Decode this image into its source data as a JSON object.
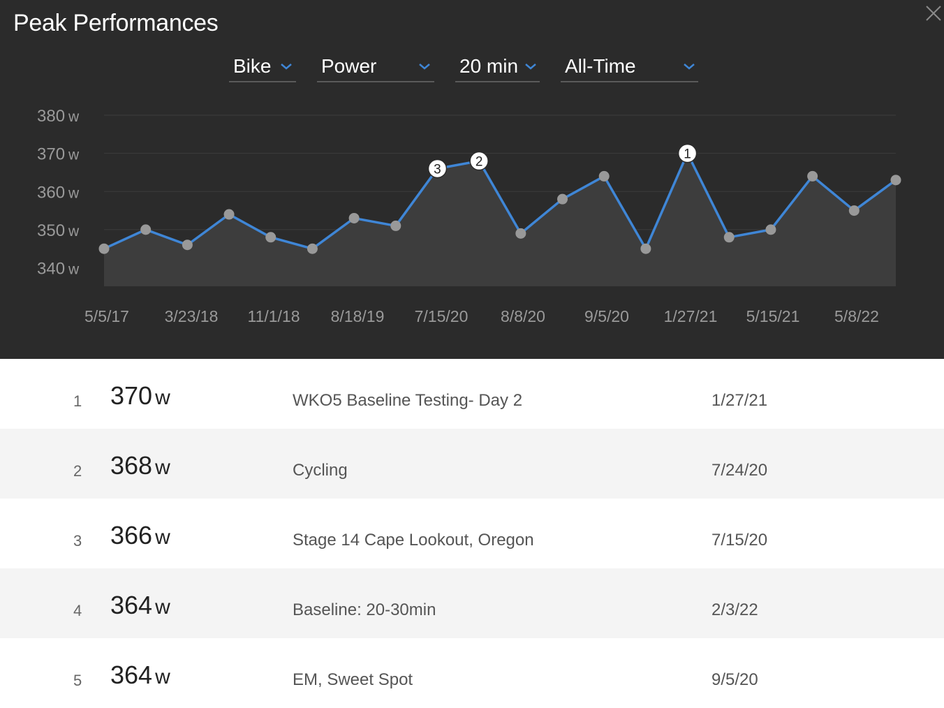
{
  "title": "Peak Performances",
  "colors": {
    "accent": "#3f86d6",
    "panel": "#2b2b2b",
    "point": "#999999",
    "row_alt": "#f4f4f4"
  },
  "filters": [
    {
      "label": "Bike",
      "icon": "chevron-down-icon"
    },
    {
      "label": "Power",
      "icon": "chevron-down-icon"
    },
    {
      "label": "20 min",
      "icon": "chevron-down-icon"
    },
    {
      "label": "All-Time",
      "icon": "chevron-down-icon"
    }
  ],
  "chart_data": {
    "type": "line",
    "y_unit": "w",
    "ylim": [
      335,
      380
    ],
    "y_ticks": [
      340,
      350,
      360,
      370,
      380
    ],
    "x_tick_labels": [
      "5/5/17",
      "3/23/18",
      "11/1/18",
      "8/18/19",
      "7/15/20",
      "8/8/20",
      "9/5/20",
      "1/27/21",
      "5/15/21",
      "5/8/22"
    ],
    "values": [
      345,
      350,
      346,
      354,
      348,
      345,
      353,
      351,
      366,
      368,
      349,
      358,
      364,
      345,
      370,
      348,
      350,
      364,
      355,
      363
    ],
    "ranked_points": [
      {
        "index": 14,
        "label": "1"
      },
      {
        "index": 9,
        "label": "2"
      },
      {
        "index": 8,
        "label": "3"
      }
    ],
    "grid": true,
    "area_fill": true
  },
  "rows": [
    {
      "rank": "1",
      "value": "370",
      "unit": "w",
      "name": "WKO5 Baseline Testing- Day 2",
      "date": "1/27/21"
    },
    {
      "rank": "2",
      "value": "368",
      "unit": "w",
      "name": "Cycling",
      "date": "7/24/20"
    },
    {
      "rank": "3",
      "value": "366",
      "unit": "w",
      "name": "Stage 14 Cape Lookout, Oregon",
      "date": "7/15/20"
    },
    {
      "rank": "4",
      "value": "364",
      "unit": "w",
      "name": "Baseline: 20-30min",
      "date": "2/3/22"
    },
    {
      "rank": "5",
      "value": "364",
      "unit": "w",
      "name": "EM, Sweet Spot",
      "date": "9/5/20"
    }
  ]
}
